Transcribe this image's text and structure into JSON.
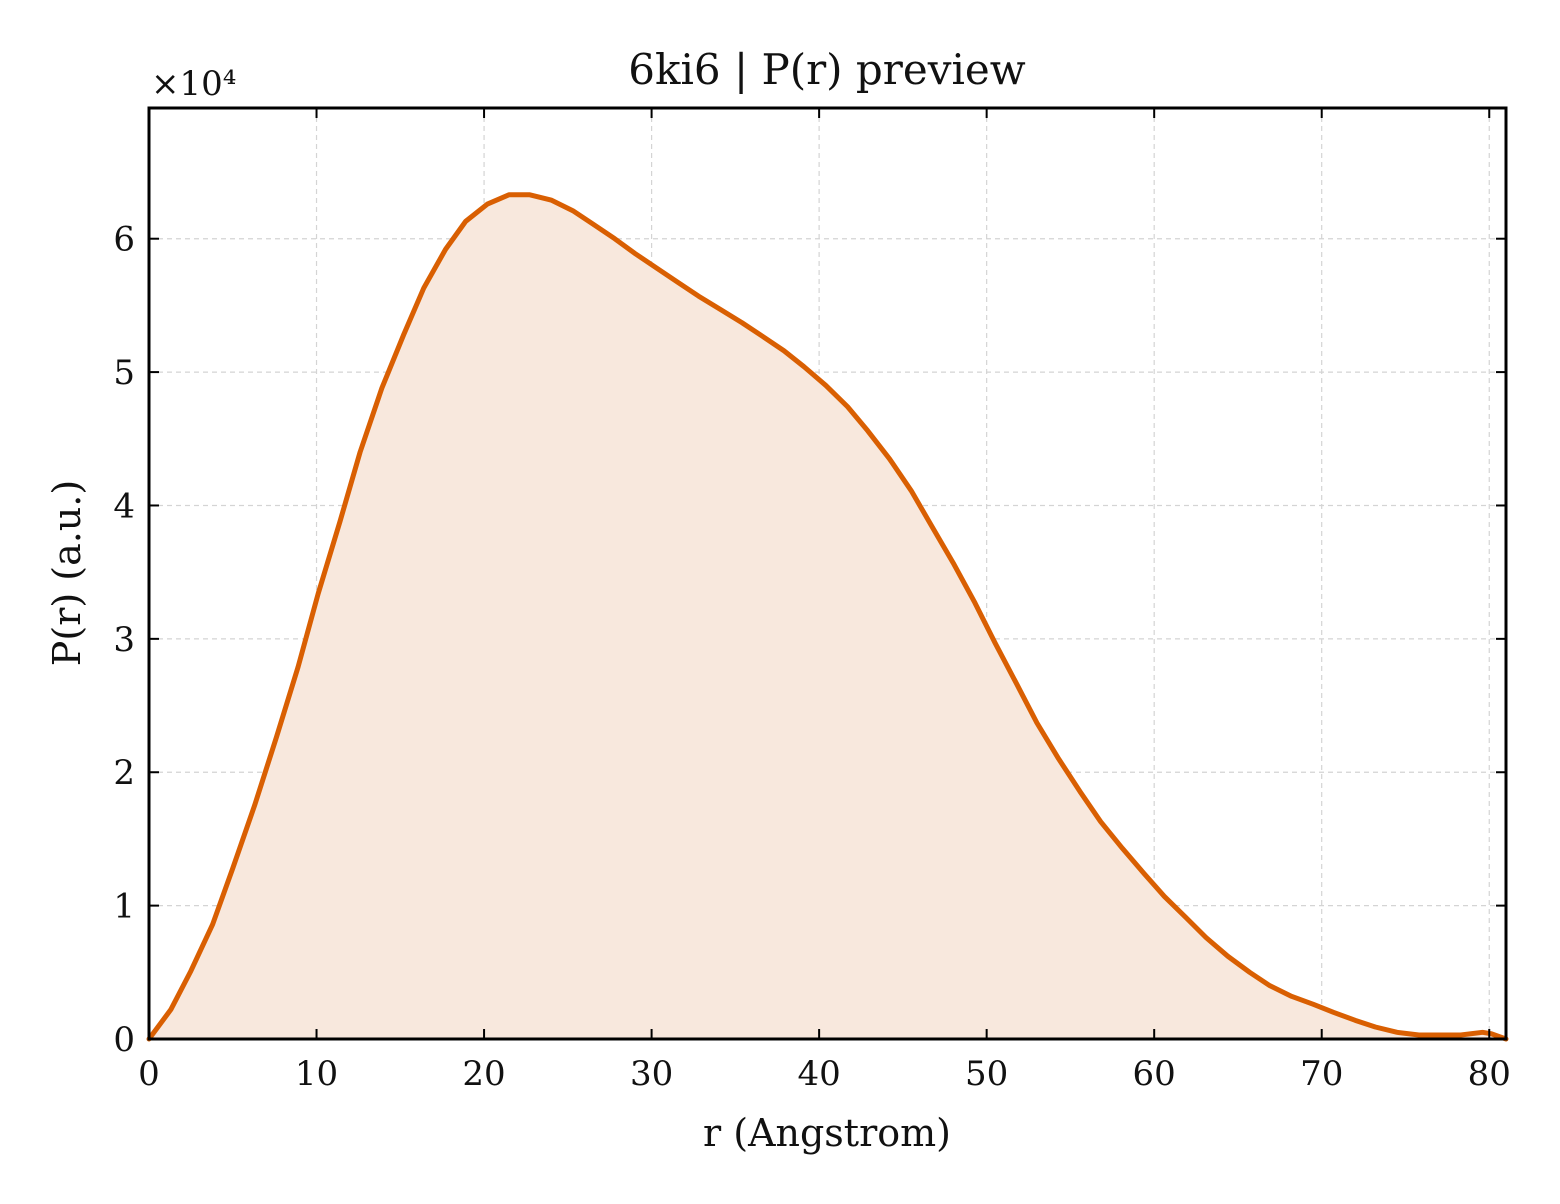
{
  "chart_data": {
    "type": "area",
    "title": "6ki6 | P(r) preview",
    "xlabel": "r (Angstrom)",
    "ylabel": "P(r) (a.u.)",
    "y_multiplier": "×10⁴",
    "y_scale": 10000,
    "xlim": [
      0,
      81
    ],
    "ylim": [
      0,
      69800
    ],
    "xticks": [
      0,
      10,
      20,
      30,
      40,
      50,
      60,
      70,
      80
    ],
    "yticks": [
      0,
      1,
      2,
      3,
      4,
      5,
      6
    ],
    "grid": true,
    "legend": "none",
    "series": [
      {
        "color": "#d95f02",
        "fill_color": "#f8e8dd",
        "x": [
          0,
          1.3,
          2.5,
          3.8,
          5.0,
          6.3,
          7.6,
          8.9,
          10.1,
          11.4,
          12.6,
          13.9,
          15.2,
          16.4,
          17.7,
          18.9,
          20.2,
          21.5,
          22.7,
          24.0,
          25.3,
          26.5,
          27.8,
          29.0,
          30.3,
          31.6,
          32.8,
          34.1,
          35.4,
          36.6,
          37.9,
          39.1,
          40.4,
          41.7,
          42.9,
          44.2,
          45.5,
          46.7,
          48.0,
          49.3,
          50.5,
          51.8,
          53.0,
          54.3,
          55.6,
          56.8,
          58.1,
          59.4,
          60.6,
          61.9,
          63.1,
          64.4,
          65.7,
          66.9,
          68.2,
          69.5,
          70.7,
          72.0,
          73.2,
          74.5,
          75.8,
          77.0,
          78.3,
          79.6,
          80.1,
          81.0
        ],
        "y": [
          0,
          2200,
          5100,
          8600,
          12800,
          17500,
          22600,
          27900,
          33400,
          38800,
          44000,
          48800,
          52800,
          56300,
          59200,
          61300,
          62600,
          63300,
          63300,
          62900,
          62100,
          61100,
          60000,
          58900,
          57800,
          56700,
          55700,
          54700,
          53700,
          52700,
          51600,
          50400,
          49000,
          47400,
          45600,
          43500,
          41100,
          38500,
          35700,
          32700,
          29700,
          26600,
          23700,
          21000,
          18500,
          16300,
          14300,
          12400,
          10700,
          9100,
          7600,
          6200,
          5000,
          4000,
          3200,
          2600,
          2000,
          1400,
          900,
          500,
          300,
          300,
          300,
          500,
          400,
          0
        ]
      }
    ]
  }
}
